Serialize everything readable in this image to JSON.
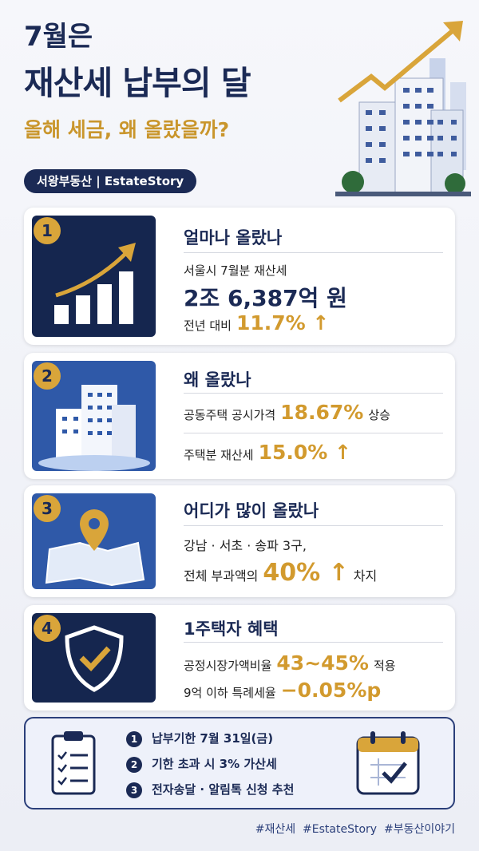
{
  "header": {
    "title_line1": "7월은",
    "title_line2": "재산세 납부의 달",
    "subtitle": "올해 세금, 왜 올랐을까?",
    "badge": "서왕부동산 | EstateStory"
  },
  "cards": [
    {
      "number": "1",
      "title": "얼마나 올랐나",
      "lines": [
        [
          "서울시 7월분 재산세"
        ],
        [
          "2조 6,387억 원"
        ],
        [
          "전년 대비",
          "11.7% ↑"
        ]
      ]
    },
    {
      "number": "2",
      "title": "왜 올랐나",
      "lines": [
        [
          "공동주택 공시가격",
          "18.67%",
          "상승"
        ],
        [
          "주택분 재산세",
          "15.0% ↑"
        ]
      ]
    },
    {
      "number": "3",
      "title": "어디가 많이 올랐나",
      "lines": [
        [
          "강남 · 서초 · 송파 3구,"
        ],
        [
          "전체 부과액의",
          "40% ↑",
          "차지"
        ]
      ]
    },
    {
      "number": "4",
      "title": "1주택자 혜택",
      "lines": [
        [
          "공정시장가액비율",
          "43~45%",
          "적용"
        ],
        [
          "9억 이하 특례세율",
          "−0.05%p"
        ]
      ]
    }
  ],
  "notice": {
    "items": [
      {
        "number": "1",
        "text": "납부기한 7월 31일(금)"
      },
      {
        "number": "2",
        "text": "기한 초과 시 3% 가산세"
      },
      {
        "number": "3",
        "text": "전자송달 · 알림톡 신청 추천"
      }
    ]
  },
  "footer": {
    "hashtags": "#재산세  #EstateStory  #부동산이야기"
  }
}
